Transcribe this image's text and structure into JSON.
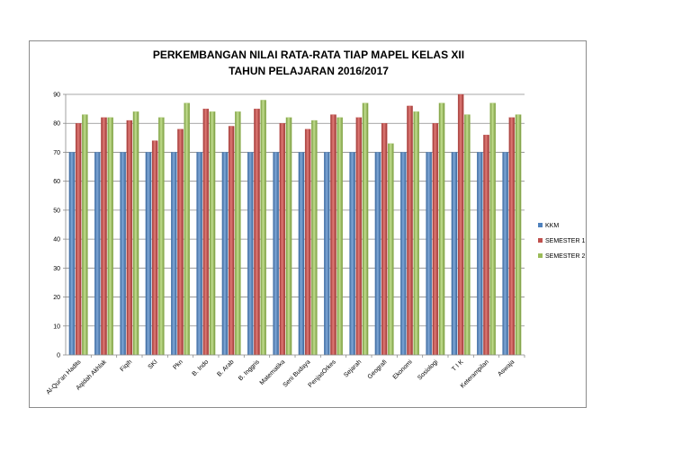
{
  "chart_data": {
    "type": "bar",
    "title_lines": [
      "PERKEMBANGAN NILAI RATA-RATA TIAP MAPEL KELAS XII",
      "TAHUN PELAJARAN 2016/2017"
    ],
    "categories": [
      "Al-Qur'an Hadits",
      "Aqidah Akhlak",
      "Fiqih",
      "SKI",
      "Pkn",
      "B. Indo",
      "B. Arab",
      "B. Inggris",
      "Matematika",
      "Seni Budaya",
      "PenjasOrkes",
      "Sejarah",
      "Geografi",
      "Ekonomi",
      "Sosiologi",
      "T I K",
      "Keterampilan",
      "Aswaja"
    ],
    "series": [
      {
        "name": "KKM",
        "color": "#4f81bd",
        "values": [
          70,
          70,
          70,
          70,
          70,
          70,
          70,
          70,
          70,
          70,
          70,
          70,
          70,
          70,
          70,
          70,
          70,
          70
        ]
      },
      {
        "name": "SEMESTER 1",
        "color": "#c0504d",
        "values": [
          80,
          82,
          81,
          74,
          78,
          85,
          79,
          85,
          80,
          78,
          83,
          82,
          80,
          86,
          80,
          90,
          76,
          82
        ]
      },
      {
        "name": "SEMESTER 2",
        "color": "#9bbb59",
        "values": [
          83,
          82,
          84,
          82,
          87,
          84,
          84,
          88,
          82,
          81,
          82,
          87,
          73,
          84,
          87,
          83,
          87,
          83
        ]
      }
    ],
    "ylim": [
      0,
      90
    ],
    "yticks": [
      0,
      10,
      20,
      30,
      40,
      50,
      60,
      70,
      80,
      90
    ],
    "grid": true,
    "legend_position": "right"
  }
}
